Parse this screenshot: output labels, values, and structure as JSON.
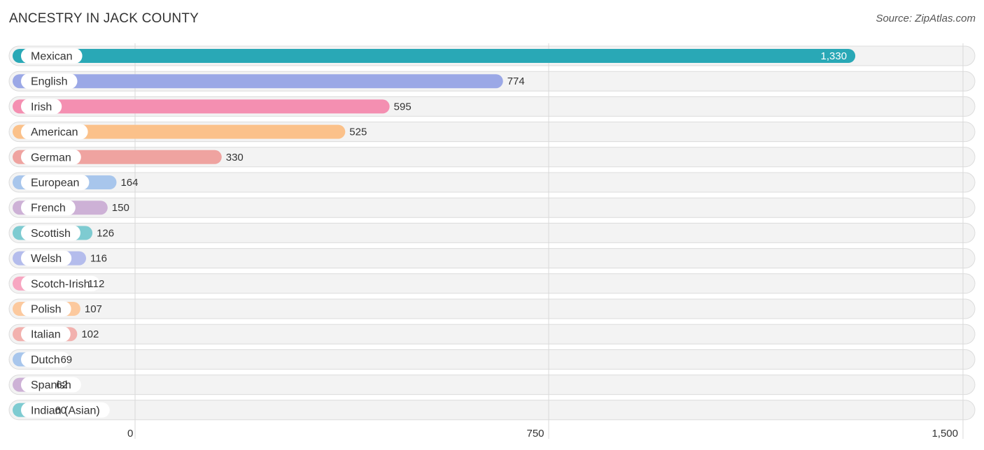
{
  "header": {
    "title": "ANCESTRY IN JACK COUNTY",
    "source": "Source: ZipAtlas.com"
  },
  "chart_data": {
    "type": "bar",
    "orientation": "horizontal",
    "title": "ANCESTRY IN JACK COUNTY",
    "xlabel": "",
    "ylabel": "",
    "xlim": [
      0,
      1500
    ],
    "ticks": [
      0,
      750,
      1500
    ],
    "tick_labels": [
      "0",
      "750",
      "1,500"
    ],
    "categories": [
      "Mexican",
      "English",
      "Irish",
      "American",
      "German",
      "European",
      "French",
      "Scottish",
      "Welsh",
      "Scotch-Irish",
      "Polish",
      "Italian",
      "Dutch",
      "Spanish",
      "Indian (Asian)"
    ],
    "values": [
      1330,
      774,
      595,
      525,
      330,
      164,
      150,
      126,
      116,
      112,
      107,
      102,
      69,
      62,
      60
    ],
    "value_labels": [
      "1,330",
      "774",
      "595",
      "525",
      "330",
      "164",
      "150",
      "126",
      "116",
      "112",
      "107",
      "102",
      "69",
      "62",
      "60"
    ],
    "colors": [
      "#29a8b6",
      "#9ba8e6",
      "#f48fb1",
      "#fbc18a",
      "#efa3a0",
      "#a8c6ec",
      "#cdb1d6",
      "#7ecbd1",
      "#b4bcec",
      "#f7a6c1",
      "#fcc99e",
      "#f2b1ae",
      "#a8c6ec",
      "#cdb1d6",
      "#7ecbd1"
    ]
  }
}
